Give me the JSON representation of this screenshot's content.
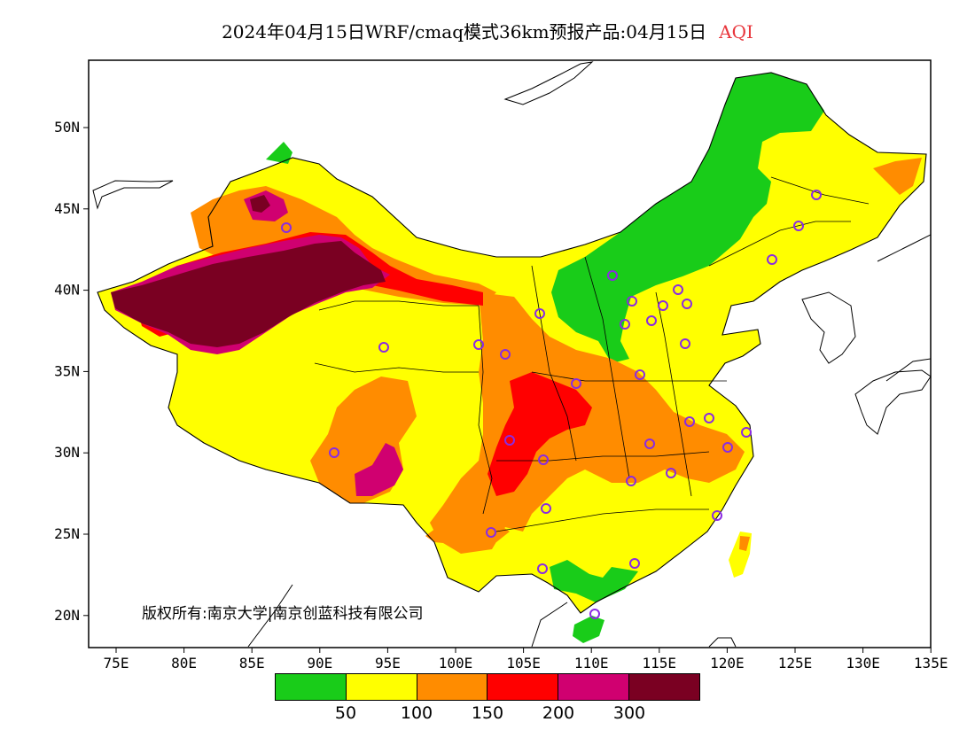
{
  "title": {
    "main": "2024年04月15日WRF/cmaq模式36km预报产品:04月15日",
    "highlight": "AQI"
  },
  "axes": {
    "x_ticks": [
      "75E",
      "80E",
      "85E",
      "90E",
      "95E",
      "100E",
      "105E",
      "110E",
      "115E",
      "120E",
      "125E",
      "130E",
      "135E"
    ],
    "y_ticks": [
      "50N",
      "45N",
      "40N",
      "35N",
      "30N",
      "25N",
      "20N"
    ]
  },
  "copyright": "版权所有:南京大学|南京创蓝科技有限公司",
  "legend": {
    "colors": [
      "#19cc19",
      "#ffff00",
      "#ff8c00",
      "#ff0000",
      "#d00070",
      "#7a0022"
    ],
    "labels": [
      "50",
      "100",
      "150",
      "200",
      "300"
    ]
  },
  "station_color": "#8a2be2",
  "map_colors": {
    "good": "#19cc19",
    "moderate": "#ffff00",
    "unhealthy_sensitive": "#ff8c00",
    "unhealthy": "#ff0000",
    "very_unhealthy": "#d00070",
    "hazardous": "#7a0022"
  }
}
